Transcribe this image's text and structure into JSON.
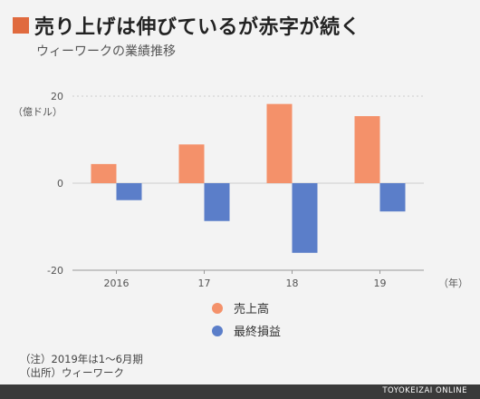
{
  "title": "売り上げは伸びているが赤字が続く",
  "subtitle": "ウィーワークの業績推移",
  "colors": {
    "title_mark": "#e06a3e",
    "revenue": "#f4916a",
    "net_income": "#5b7ec9",
    "grid": "#cccccc",
    "footer_bg": "#3a3a3a"
  },
  "chart_data": {
    "type": "bar",
    "categories": [
      "2016",
      "17",
      "18",
      "19"
    ],
    "series": [
      {
        "name": "売上高",
        "values": [
          4.4,
          8.9,
          18.2,
          15.4
        ]
      },
      {
        "name": "最終損益",
        "values": [
          -3.9,
          -8.7,
          -16.0,
          -6.5
        ]
      }
    ],
    "xlabel": "（年）",
    "ylabel": "（億ドル）",
    "ylim": [
      -20,
      20
    ],
    "yticks": [
      "20",
      "0",
      "-20"
    ],
    "grid": true,
    "legend_position": "bottom"
  },
  "legend": [
    {
      "label": "売上高"
    },
    {
      "label": "最終損益"
    }
  ],
  "notes": {
    "note1": "（注）2019年は1〜6月期",
    "note2": "（出所）ウィーワーク"
  },
  "footer": {
    "brand": "TOYOKEIZAI ONLINE"
  }
}
